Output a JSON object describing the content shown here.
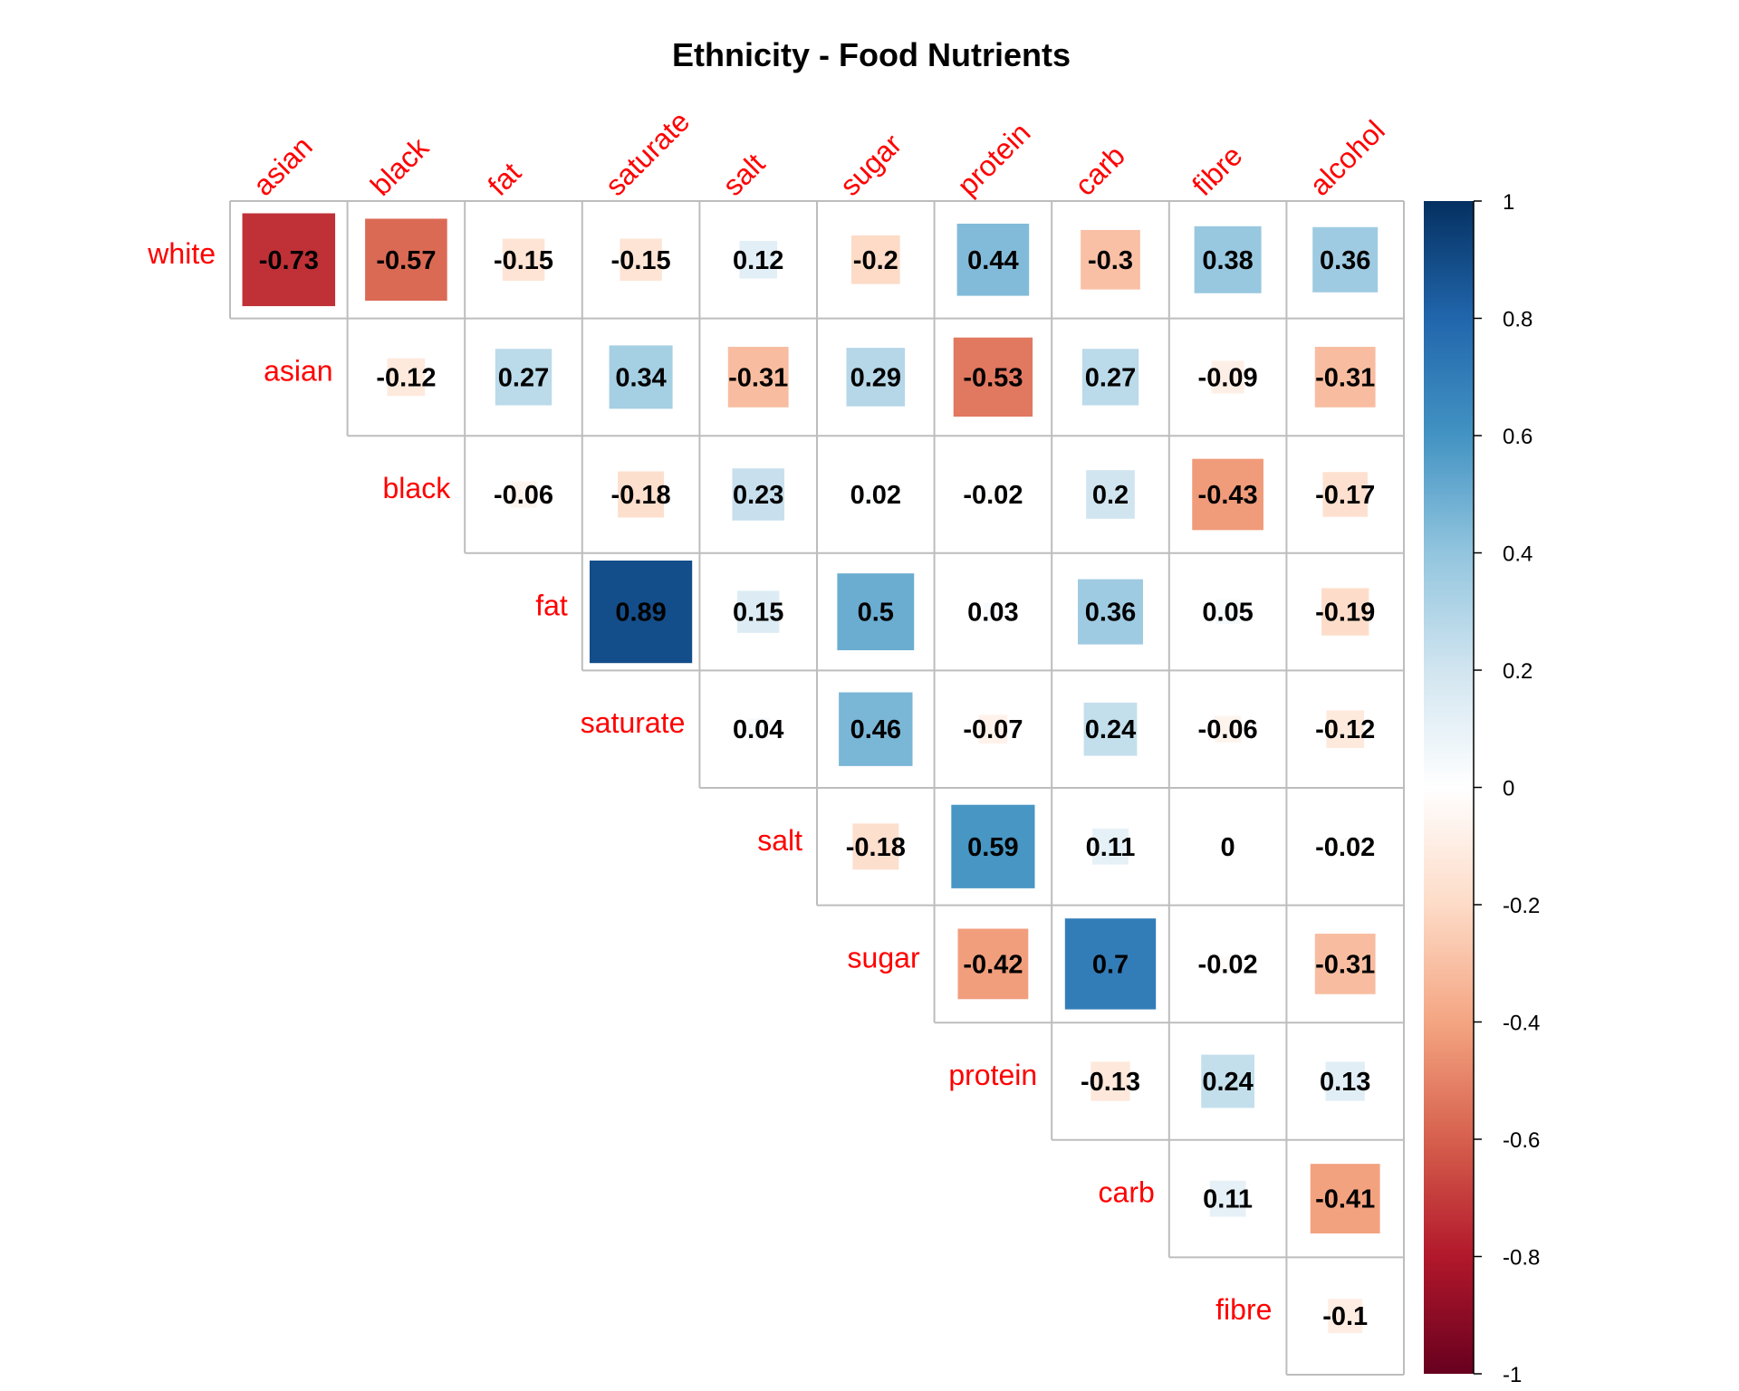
{
  "chart_data": {
    "type": "heatmap",
    "title": "Ethnicity - Food Nutrients",
    "rows": [
      "white",
      "asian",
      "black",
      "fat",
      "saturate",
      "salt",
      "sugar",
      "protein",
      "carb",
      "fibre"
    ],
    "columns": [
      "asian",
      "black",
      "fat",
      "saturate",
      "salt",
      "sugar",
      "protein",
      "carb",
      "fibre",
      "alcohol"
    ],
    "cells": [
      [
        {
          "c": 0,
          "v": "-0.73"
        },
        {
          "c": 1,
          "v": "-0.57"
        },
        {
          "c": 2,
          "v": "-0.15"
        },
        {
          "c": 3,
          "v": "-0.15"
        },
        {
          "c": 4,
          "v": "0.12"
        },
        {
          "c": 5,
          "v": "-0.2"
        },
        {
          "c": 6,
          "v": "0.44"
        },
        {
          "c": 7,
          "v": "-0.3"
        },
        {
          "c": 8,
          "v": "0.38"
        },
        {
          "c": 9,
          "v": "0.36"
        }
      ],
      [
        {
          "c": 1,
          "v": "-0.12"
        },
        {
          "c": 2,
          "v": "0.27"
        },
        {
          "c": 3,
          "v": "0.34"
        },
        {
          "c": 4,
          "v": "-0.31"
        },
        {
          "c": 5,
          "v": "0.29"
        },
        {
          "c": 6,
          "v": "-0.53"
        },
        {
          "c": 7,
          "v": "0.27"
        },
        {
          "c": 8,
          "v": "-0.09"
        },
        {
          "c": 9,
          "v": "-0.31"
        }
      ],
      [
        {
          "c": 2,
          "v": "-0.06"
        },
        {
          "c": 3,
          "v": "-0.18"
        },
        {
          "c": 4,
          "v": "0.23"
        },
        {
          "c": 5,
          "v": "0.02"
        },
        {
          "c": 6,
          "v": "-0.02"
        },
        {
          "c": 7,
          "v": "0.2"
        },
        {
          "c": 8,
          "v": "-0.43"
        },
        {
          "c": 9,
          "v": "-0.17"
        }
      ],
      [
        {
          "c": 3,
          "v": "0.89"
        },
        {
          "c": 4,
          "v": "0.15"
        },
        {
          "c": 5,
          "v": "0.5"
        },
        {
          "c": 6,
          "v": "0.03"
        },
        {
          "c": 7,
          "v": "0.36"
        },
        {
          "c": 8,
          "v": "0.05"
        },
        {
          "c": 9,
          "v": "-0.19"
        }
      ],
      [
        {
          "c": 4,
          "v": "0.04"
        },
        {
          "c": 5,
          "v": "0.46"
        },
        {
          "c": 6,
          "v": "-0.07"
        },
        {
          "c": 7,
          "v": "0.24"
        },
        {
          "c": 8,
          "v": "-0.06"
        },
        {
          "c": 9,
          "v": "-0.12"
        }
      ],
      [
        {
          "c": 5,
          "v": "-0.18"
        },
        {
          "c": 6,
          "v": "0.59"
        },
        {
          "c": 7,
          "v": "0.11"
        },
        {
          "c": 8,
          "v": "0"
        },
        {
          "c": 9,
          "v": "-0.02"
        }
      ],
      [
        {
          "c": 6,
          "v": "-0.42"
        },
        {
          "c": 7,
          "v": "0.7"
        },
        {
          "c": 8,
          "v": "-0.02"
        },
        {
          "c": 9,
          "v": "-0.31"
        }
      ],
      [
        {
          "c": 7,
          "v": "-0.13"
        },
        {
          "c": 8,
          "v": "0.24"
        },
        {
          "c": 9,
          "v": "0.13"
        }
      ],
      [
        {
          "c": 8,
          "v": "0.11"
        },
        {
          "c": 9,
          "v": "-0.41"
        }
      ],
      [
        {
          "c": 9,
          "v": "-0.1"
        }
      ]
    ],
    "colorbar": {
      "min": -1,
      "max": 1,
      "ticks": [
        "1",
        "0.8",
        "0.6",
        "0.4",
        "0.2",
        "0",
        "-0.2",
        "-0.4",
        "-0.6",
        "-0.8",
        "-1"
      ],
      "palette": [
        "#67001f",
        "#b2182b",
        "#d6604d",
        "#f4a582",
        "#fddbc7",
        "#ffffff",
        "#d1e5f0",
        "#92c5de",
        "#4393c3",
        "#2166ac",
        "#053061"
      ]
    },
    "label_color": "#ff0000",
    "grid_color": "#bdbdbd"
  }
}
